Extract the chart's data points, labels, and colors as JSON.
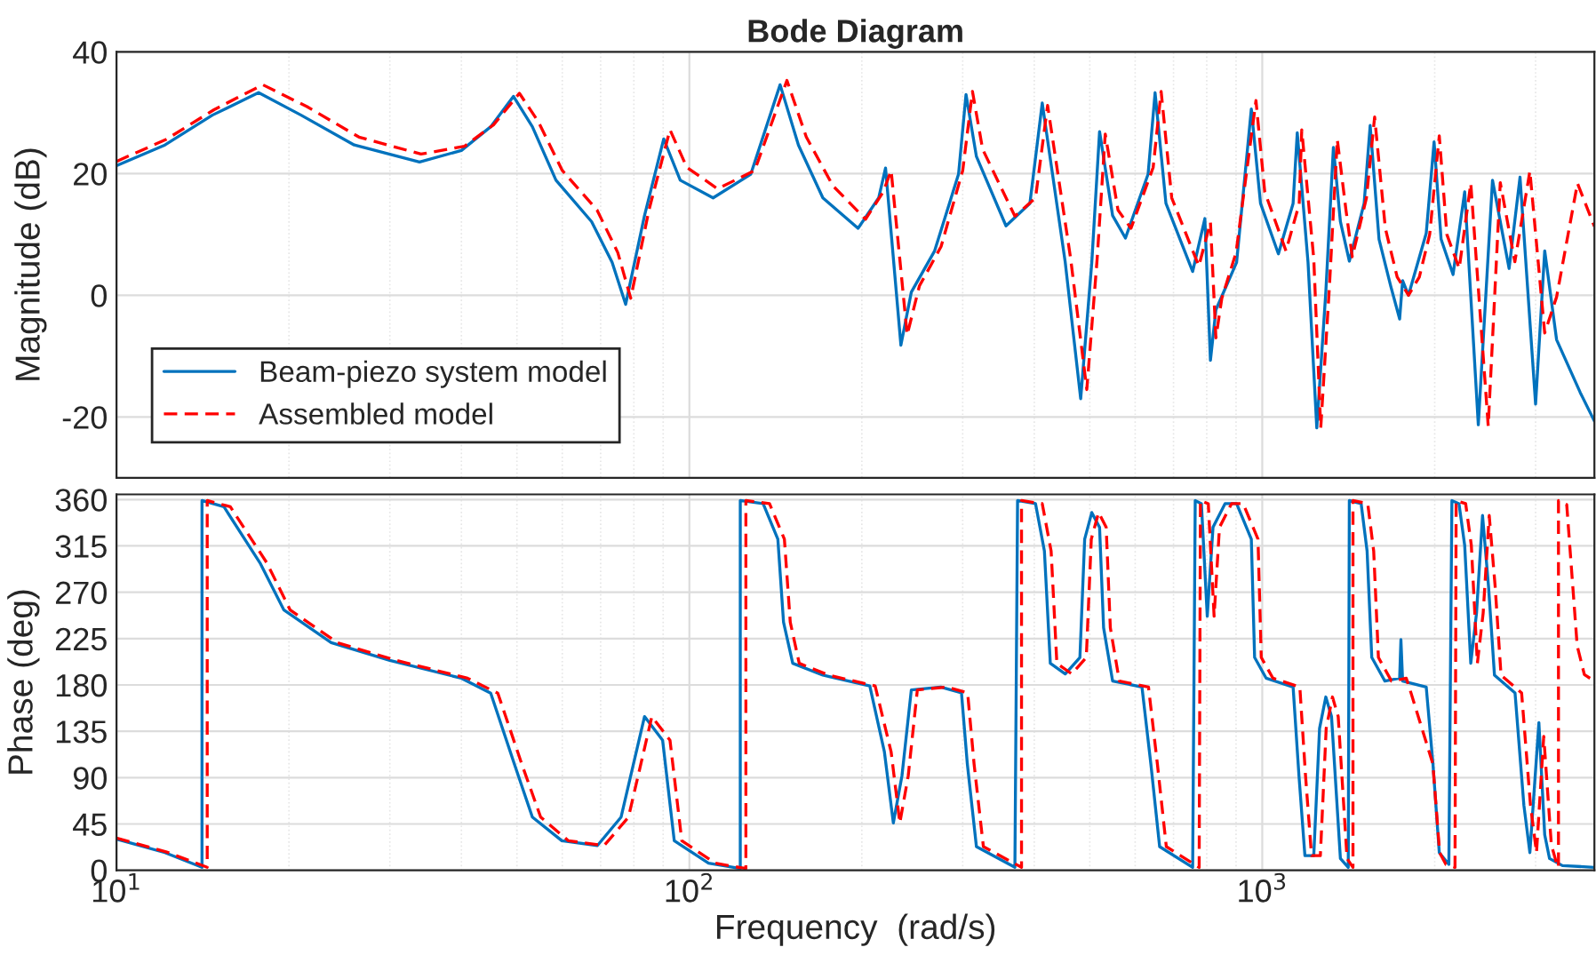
{
  "chart_data": [
    {
      "type": "line",
      "title": "Bode Diagram",
      "ylabel": "Magnitude (dB)",
      "log": "x",
      "xlim": [
        10,
        3800
      ],
      "ylim": [
        -30,
        40
      ],
      "xticks": [
        {
          "value": 10,
          "label": null
        },
        {
          "value": 100,
          "label": null
        },
        {
          "value": 1000,
          "label": null
        }
      ],
      "yticks": [
        -20,
        0,
        20,
        40
      ],
      "grid": true,
      "legend": "bottom left",
      "tick_labels": "y",
      "series": [
        {
          "name": "Beam-piezo system model",
          "color": "#0072bd",
          "line_style": "solid",
          "x": [
            10,
            12.15,
            14.7,
            17.7,
            21,
            26,
            33.8,
            40,
            45,
            49.3,
            53.2,
            58.5,
            67.5,
            73.3,
            77.4,
            83.5,
            90.2,
            96.4,
            110,
            128,
            144,
            155,
            171,
            197,
            214,
            220,
            234,
            244,
            268,
            295,
            304,
            317,
            357,
            393,
            413,
            453,
            482,
            504,
            520,
            548,
            577,
            632,
            650,
            679,
            756,
            794,
            812,
            830,
            902,
            957,
            993,
            1067,
            1132,
            1151,
            1202,
            1245,
            1291,
            1331,
            1369,
            1419,
            1506,
            1543,
            1599,
            1676,
            1737,
            1758,
            1800,
            1933,
            1995,
            2052,
            2153,
            2256,
            2383,
            2523,
            2697,
            2818,
            3000,
            3112,
            3264,
            3590,
            3800
          ],
          "values": [
            21.3,
            24.7,
            29.6,
            33.3,
            29.6,
            24.7,
            21.9,
            23.8,
            27.7,
            32.7,
            27.7,
            18.9,
            12.1,
            5.4,
            -1.5,
            13.1,
            25.7,
            18.9,
            16.0,
            19.9,
            34.6,
            24.7,
            16.0,
            11.0,
            16.0,
            20.9,
            -8.2,
            0.5,
            7.3,
            19.9,
            33.0,
            22.8,
            11.4,
            15.1,
            31.6,
            5.4,
            -17.0,
            5.4,
            26.9,
            13.1,
            9.4,
            19.9,
            33.3,
            15.1,
            3.9,
            12.6,
            -10.7,
            -2.4,
            5.4,
            30.6,
            15.1,
            6.8,
            15.1,
            26.7,
            5.4,
            -21.8,
            0.5,
            24.3,
            12.1,
            5.6,
            15.1,
            27.9,
            9.2,
            1.5,
            -3.9,
            2.4,
            0.0,
            10.2,
            25.2,
            9.2,
            3.4,
            17.0,
            -21.3,
            18.9,
            4.4,
            19.4,
            -17.9,
            7.3,
            -7.3,
            -16.0,
            -20.7
          ]
        },
        {
          "name": "Assembled model",
          "color": "#ff0000",
          "line_style": "dashed",
          "x": [
            10,
            12.2,
            14.8,
            18,
            21.5,
            26.5,
            34,
            40.5,
            45.5,
            50.5,
            54.5,
            60,
            69,
            75,
            79,
            85,
            92.5,
            99,
            112,
            130,
            148,
            160,
            178,
            203,
            218,
            225,
            240,
            252,
            275,
            300,
            312,
            325,
            370,
            402,
            422,
            463,
            494,
            515,
            532,
            560,
            590,
            645,
            666,
            695,
            775,
            812,
            830,
            850,
            900,
            975,
            1010,
            1100,
            1160,
            1172,
            1230,
            1265,
            1310,
            1352,
            1400,
            1436,
            1520,
            1571,
            1640,
            1720,
            1800,
            1880,
            1960,
            2037,
            2100,
            2207,
            2312,
            2480,
            2603,
            2760,
            2932,
            3112,
            3264,
            3550,
            3800
          ],
          "values": [
            22.0,
            25.6,
            30.5,
            34.6,
            31.0,
            26.0,
            23.2,
            24.5,
            28.0,
            33.2,
            28.5,
            20.5,
            14.0,
            7.0,
            -0.5,
            14.0,
            27.2,
            21.0,
            17.5,
            20.5,
            35.3,
            26.0,
            18.0,
            12.5,
            17.0,
            20.5,
            -6.5,
            1.5,
            8.0,
            20.5,
            33.5,
            24.0,
            13.0,
            16.0,
            31.2,
            6.0,
            -15.5,
            6.0,
            26.5,
            14.0,
            11.0,
            21.0,
            33.5,
            16.0,
            4.8,
            12.0,
            -7.0,
            -0.5,
            7.0,
            32.0,
            17.0,
            7.3,
            15.0,
            27.2,
            6.0,
            -21.8,
            1.5,
            25.6,
            14.0,
            6.3,
            16.0,
            29.3,
            11.0,
            3.0,
            0.0,
            3.0,
            10.0,
            26.2,
            10.0,
            4.4,
            18.4,
            -21.5,
            18.5,
            5.5,
            20.4,
            -6.2,
            -0.3,
            18.4,
            11.3
          ]
        }
      ]
    },
    {
      "type": "line",
      "xlabel": "Frequency  (rad/s)",
      "ylabel": "Phase (deg)",
      "log": "x",
      "xlim": [
        10,
        3800
      ],
      "ylim": [
        0,
        365
      ],
      "xticks": [
        {
          "value": 10,
          "label": "10$^{1}$"
        },
        {
          "value": 100,
          "label": "10$^{2}$"
        },
        {
          "value": 1000,
          "label": "10$^{3}$"
        }
      ],
      "yticks": [
        0,
        45,
        90,
        135,
        180,
        225,
        270,
        315,
        360
      ],
      "grid": true,
      "series": [
        {
          "color": "#0072bd",
          "line_style": "solid",
          "x": [
            10,
            12.15,
            14.1,
            14.1,
            15.4,
            17.8,
            19.6,
            23.7,
            30,
            40,
            45,
            49.5,
            53.2,
            59.9,
            69.1,
            76,
            83.5,
            89.8,
            94.1,
            108,
            122.7,
            122.7,
            134.5,
            142.7,
            146,
            151.5,
            171,
            206.5,
            219,
            227,
            235,
            244,
            274.7,
            298.5,
            305.6,
            317,
            370,
            374,
            402,
            416.6,
            426.6,
            453,
            480.5,
            489.8,
            504,
            520,
            528.5,
            548,
            616.6,
            639,
            662,
            756,
            763.8,
            783,
            801.7,
            820.4,
            861,
            902,
            957,
            969.7,
            1016,
            1132,
            1159,
            1187,
            1230,
            1259,
            1291,
            1321,
            1369,
            1413,
            1419,
            1488,
            1524,
            1553,
            1637,
            1737,
            1746,
            1758,
            1933,
            1986,
            2037,
            2117,
            2143,
            2205,
            2256,
            2312,
            2366,
            2424,
            2483,
            2543,
            2762,
            2862,
            2932,
            3040,
            3112,
            3173,
            3342,
            3800
          ],
          "values": [
            30.4,
            17.2,
            2.9,
            359,
            353,
            298.5,
            252.7,
            221,
            203.8,
            186.5,
            172,
            103,
            51.7,
            28.7,
            24.1,
            51.7,
            149.3,
            126.3,
            28.7,
            6.9,
            1.7,
            359,
            356,
            321.6,
            241,
            201,
            189.5,
            179,
            114.9,
            46,
            91.8,
            175.2,
            178,
            172.3,
            103.4,
            23,
            2.9,
            359,
            356,
            310,
            201,
            190.7,
            206.7,
            321.6,
            347.4,
            333,
            235.5,
            183.8,
            178,
            103.4,
            23,
            2.9,
            359,
            356,
            246.8,
            333,
            356,
            356,
            321.6,
            206.7,
            186.5,
            178,
            91.8,
            14.3,
            14.3,
            137.8,
            168.3,
            149.3,
            11.5,
            2.9,
            359,
            356,
            310,
            206.7,
            183.8,
            186.5,
            224,
            183.8,
            178,
            103.4,
            17.2,
            5.7,
            359,
            356,
            315.7,
            201,
            249.8,
            344.5,
            275.6,
            189.5,
            172.3,
            63.2,
            17.2,
            143.5,
            34.5,
            11.5,
            4.6,
            2.9
          ]
        },
        {
          "color": "#ff0000",
          "line_style": "dashed",
          "x": [
            10,
            12.2,
            14.4,
            14.4,
            15.8,
            18.3,
            20.1,
            24.3,
            30.8,
            41,
            46.3,
            51,
            55,
            61.5,
            71,
            78.3,
            86,
            92.5,
            97,
            111,
            125.5,
            125.5,
            138,
            146.5,
            150,
            155.5,
            175,
            211,
            225,
            233,
            241,
            250,
            281,
            306,
            314,
            326,
            380,
            380,
            413,
            428,
            438,
            465,
            493,
            503,
            518,
            534,
            543,
            563,
            633,
            656,
            680,
            776,
            780,
            805,
            824,
            842,
            884,
            926,
            983,
            996,
            1044,
            1163,
            1190,
            1219,
            1263,
            1293,
            1326,
            1357,
            1406,
            1440,
            1440,
            1528,
            1565,
            1595,
            1681,
            1784,
            1805,
            1985,
            2040,
            2092,
            2170,
            2180,
            2265,
            2317,
            2374,
            2430,
            2490,
            2550,
            2611,
            2836,
            2939,
            3011,
            3100,
            3196,
            3259,
            3289,
            3289,
            3400,
            3546,
            3650,
            3800
          ],
          "values": [
            31.4,
            18.0,
            3.0,
            359,
            353,
            298.5,
            252.7,
            221,
            203.8,
            186.5,
            172,
            103,
            51.7,
            28.7,
            24.1,
            51.7,
            149.3,
            126.3,
            28.7,
            6.9,
            1.7,
            359,
            356,
            321.6,
            241,
            201,
            189.5,
            179,
            114.9,
            46,
            91.8,
            175.2,
            178,
            172.3,
            103.4,
            23,
            2.9,
            359,
            356,
            310,
            201,
            190.7,
            206.7,
            321.6,
            347.4,
            333,
            235.5,
            183.8,
            178,
            103.4,
            23,
            2.9,
            359,
            356,
            246.8,
            333,
            356,
            356,
            321.6,
            206.7,
            186.5,
            178,
            91.8,
            14.3,
            14.3,
            137.8,
            168.3,
            149.3,
            11.5,
            2.9,
            359,
            356,
            310,
            206.7,
            183.8,
            186.5,
            178,
            103.4,
            17.2,
            5.7,
            2.9,
            359,
            356,
            315.7,
            201,
            249.8,
            344.5,
            275.6,
            189.5,
            172.3,
            63.2,
            17.2,
            130,
            25,
            8,
            2.9,
            359,
            355,
            218,
            190,
            183.8
          ]
        }
      ]
    }
  ]
}
